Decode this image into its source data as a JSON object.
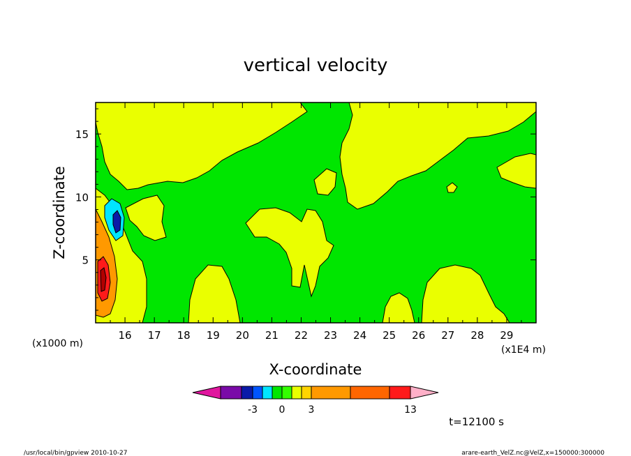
{
  "chart_data": {
    "type": "heatmap",
    "title": "vertical velocity",
    "xlabel": "X-coordinate",
    "ylabel": "Z-coordinate",
    "x_unit_label": "(x1E4 m)",
    "y_unit_label": "(x1000 m)",
    "xlim": [
      15.0,
      30.0
    ],
    "ylim": [
      0.0,
      17.5
    ],
    "xticks": [
      "16",
      "17",
      "18",
      "19",
      "20",
      "21",
      "22",
      "23",
      "24",
      "25",
      "26",
      "27",
      "28",
      "29"
    ],
    "yticks": [
      "5",
      "10",
      "15"
    ],
    "grid": false,
    "colorbar": {
      "tick_labels": [
        "-3",
        "0",
        "3",
        "13"
      ],
      "colors": [
        "#e0169e",
        "#7a0aa8",
        "#0a1aa8",
        "#0055ff",
        "#00e5ff",
        "#00e600",
        "#33ff00",
        "#eaff00",
        "#ffd400",
        "#ff9900",
        "#ff6600",
        "#ff1a1a",
        "#ff7878",
        "#ffb0c8"
      ]
    },
    "time_label": "t=12100 s",
    "region_colors": {
      "background": "#00e600",
      "positive_weak": "#eaff00",
      "positive_mid": "#ffd400",
      "positive_strong": "#ff9900",
      "positive_max": "#cc0000",
      "negative_weak": "#00e5ff",
      "negative_strong": "#0a1aa8"
    }
  },
  "footer": {
    "left": "/usr/local/bin/gpview   2010-10-27",
    "right": "arare-earth_VelZ.nc@VelZ,x=150000:300000"
  }
}
